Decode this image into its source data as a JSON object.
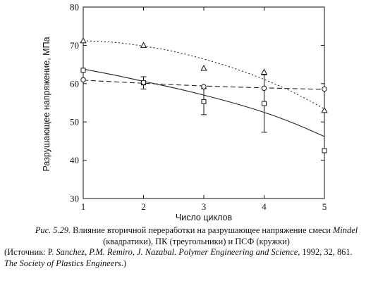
{
  "chart_data": {
    "type": "line",
    "xlabel": "Число циклов",
    "ylabel": "Разрушающее напряжение, МПа",
    "xlim": [
      1,
      5
    ],
    "ylim": [
      30,
      80
    ],
    "x_ticks": [
      "1",
      "2",
      "3",
      "4",
      "5"
    ],
    "y_ticks": [
      "30",
      "40",
      "50",
      "60",
      "70",
      "80"
    ],
    "grid": false,
    "legend": "none",
    "series": [
      {
        "marker": "square",
        "line_style": "solid",
        "x": [
          1,
          2,
          3,
          4,
          5
        ],
        "y": [
          63.5,
          60.2,
          55.3,
          54.8,
          42.5
        ],
        "error": [
          null,
          1.6,
          3.4,
          7.5,
          null
        ],
        "fit": [
          [
            1,
            63.8
          ],
          [
            1.5,
            62.3
          ],
          [
            2,
            60.6
          ],
          [
            2.5,
            58.9
          ],
          [
            3,
            57.0
          ],
          [
            3.5,
            54.9
          ],
          [
            4,
            52.5
          ],
          [
            4.5,
            49.6
          ],
          [
            5,
            46.2
          ]
        ]
      },
      {
        "marker": "triangle",
        "line_style": "dotted",
        "x": [
          1,
          2,
          3,
          4,
          5
        ],
        "y": [
          71.2,
          70.0,
          64.0,
          63.0,
          53.0
        ],
        "error": [
          null,
          null,
          null,
          null,
          null
        ],
        "fit": [
          [
            1,
            71.2
          ],
          [
            1.5,
            70.8
          ],
          [
            2,
            69.8
          ],
          [
            2.5,
            68.4
          ],
          [
            3,
            66.4
          ],
          [
            3.5,
            64.0
          ],
          [
            4,
            61.1
          ],
          [
            4.5,
            57.6
          ],
          [
            5,
            53.4
          ]
        ]
      },
      {
        "marker": "circle",
        "line_style": "dashed",
        "x": [
          1,
          2,
          3,
          4,
          5
        ],
        "y": [
          61.0,
          60.3,
          59.2,
          58.8,
          58.6
        ],
        "error": [
          null,
          null,
          null,
          null,
          null
        ],
        "fit": [
          [
            1,
            60.9
          ],
          [
            2,
            60.1
          ],
          [
            3,
            59.4
          ],
          [
            4,
            58.9
          ],
          [
            5,
            58.5
          ]
        ]
      }
    ]
  },
  "caption": {
    "line1_prefix": "Рис. 5.29.",
    "line1_text": " Влияние вторичной переработки на разрушающее напряжение смеси ",
    "line1_brand": "Mindel",
    "line2": "(квадратики), ПК (треугольники) и ПСФ (кружки)",
    "line3_a": "(Источник: P. ",
    "line3_authors": "Sanchez, P.M. Remiro, J. Nazabal. Polymer Engineering and Science",
    "line3_b": ", 1992, 32, 861.",
    "line4_italic": "The Society of Plastics Engineers",
    "line4_end": ".)"
  }
}
